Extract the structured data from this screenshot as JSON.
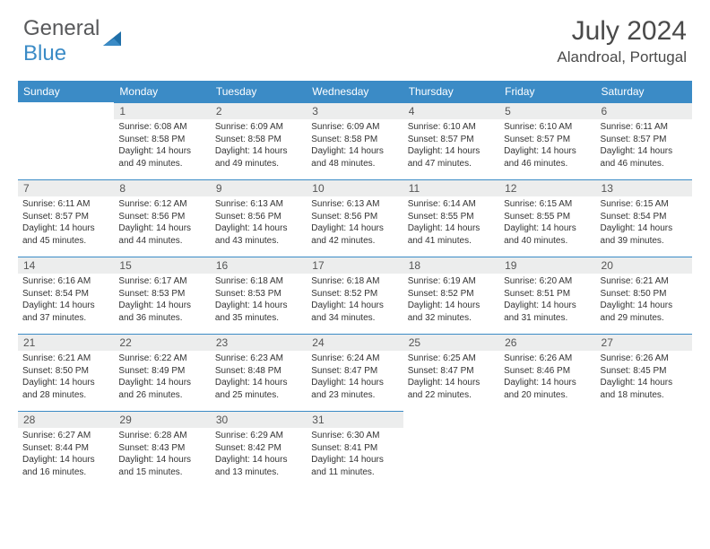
{
  "logo": {
    "text1": "General",
    "text2": "Blue"
  },
  "title": "July 2024",
  "location": "Alandroal, Portugal",
  "colors": {
    "header_bg": "#3b8bc6",
    "header_text": "#ffffff",
    "daynum_bg": "#eceded",
    "daynum_border": "#3b8bc6",
    "logo_gray": "#58595b",
    "logo_blue": "#3b8bc6"
  },
  "weekdays": [
    "Sunday",
    "Monday",
    "Tuesday",
    "Wednesday",
    "Thursday",
    "Friday",
    "Saturday"
  ],
  "weeks": [
    [
      null,
      {
        "n": "1",
        "sr": "6:08 AM",
        "ss": "8:58 PM",
        "dl": "14 hours and 49 minutes."
      },
      {
        "n": "2",
        "sr": "6:09 AM",
        "ss": "8:58 PM",
        "dl": "14 hours and 49 minutes."
      },
      {
        "n": "3",
        "sr": "6:09 AM",
        "ss": "8:58 PM",
        "dl": "14 hours and 48 minutes."
      },
      {
        "n": "4",
        "sr": "6:10 AM",
        "ss": "8:57 PM",
        "dl": "14 hours and 47 minutes."
      },
      {
        "n": "5",
        "sr": "6:10 AM",
        "ss": "8:57 PM",
        "dl": "14 hours and 46 minutes."
      },
      {
        "n": "6",
        "sr": "6:11 AM",
        "ss": "8:57 PM",
        "dl": "14 hours and 46 minutes."
      }
    ],
    [
      {
        "n": "7",
        "sr": "6:11 AM",
        "ss": "8:57 PM",
        "dl": "14 hours and 45 minutes."
      },
      {
        "n": "8",
        "sr": "6:12 AM",
        "ss": "8:56 PM",
        "dl": "14 hours and 44 minutes."
      },
      {
        "n": "9",
        "sr": "6:13 AM",
        "ss": "8:56 PM",
        "dl": "14 hours and 43 minutes."
      },
      {
        "n": "10",
        "sr": "6:13 AM",
        "ss": "8:56 PM",
        "dl": "14 hours and 42 minutes."
      },
      {
        "n": "11",
        "sr": "6:14 AM",
        "ss": "8:55 PM",
        "dl": "14 hours and 41 minutes."
      },
      {
        "n": "12",
        "sr": "6:15 AM",
        "ss": "8:55 PM",
        "dl": "14 hours and 40 minutes."
      },
      {
        "n": "13",
        "sr": "6:15 AM",
        "ss": "8:54 PM",
        "dl": "14 hours and 39 minutes."
      }
    ],
    [
      {
        "n": "14",
        "sr": "6:16 AM",
        "ss": "8:54 PM",
        "dl": "14 hours and 37 minutes."
      },
      {
        "n": "15",
        "sr": "6:17 AM",
        "ss": "8:53 PM",
        "dl": "14 hours and 36 minutes."
      },
      {
        "n": "16",
        "sr": "6:18 AM",
        "ss": "8:53 PM",
        "dl": "14 hours and 35 minutes."
      },
      {
        "n": "17",
        "sr": "6:18 AM",
        "ss": "8:52 PM",
        "dl": "14 hours and 34 minutes."
      },
      {
        "n": "18",
        "sr": "6:19 AM",
        "ss": "8:52 PM",
        "dl": "14 hours and 32 minutes."
      },
      {
        "n": "19",
        "sr": "6:20 AM",
        "ss": "8:51 PM",
        "dl": "14 hours and 31 minutes."
      },
      {
        "n": "20",
        "sr": "6:21 AM",
        "ss": "8:50 PM",
        "dl": "14 hours and 29 minutes."
      }
    ],
    [
      {
        "n": "21",
        "sr": "6:21 AM",
        "ss": "8:50 PM",
        "dl": "14 hours and 28 minutes."
      },
      {
        "n": "22",
        "sr": "6:22 AM",
        "ss": "8:49 PM",
        "dl": "14 hours and 26 minutes."
      },
      {
        "n": "23",
        "sr": "6:23 AM",
        "ss": "8:48 PM",
        "dl": "14 hours and 25 minutes."
      },
      {
        "n": "24",
        "sr": "6:24 AM",
        "ss": "8:47 PM",
        "dl": "14 hours and 23 minutes."
      },
      {
        "n": "25",
        "sr": "6:25 AM",
        "ss": "8:47 PM",
        "dl": "14 hours and 22 minutes."
      },
      {
        "n": "26",
        "sr": "6:26 AM",
        "ss": "8:46 PM",
        "dl": "14 hours and 20 minutes."
      },
      {
        "n": "27",
        "sr": "6:26 AM",
        "ss": "8:45 PM",
        "dl": "14 hours and 18 minutes."
      }
    ],
    [
      {
        "n": "28",
        "sr": "6:27 AM",
        "ss": "8:44 PM",
        "dl": "14 hours and 16 minutes."
      },
      {
        "n": "29",
        "sr": "6:28 AM",
        "ss": "8:43 PM",
        "dl": "14 hours and 15 minutes."
      },
      {
        "n": "30",
        "sr": "6:29 AM",
        "ss": "8:42 PM",
        "dl": "14 hours and 13 minutes."
      },
      {
        "n": "31",
        "sr": "6:30 AM",
        "ss": "8:41 PM",
        "dl": "14 hours and 11 minutes."
      },
      null,
      null,
      null
    ]
  ],
  "labels": {
    "sunrise": "Sunrise:",
    "sunset": "Sunset:",
    "daylight": "Daylight:"
  }
}
